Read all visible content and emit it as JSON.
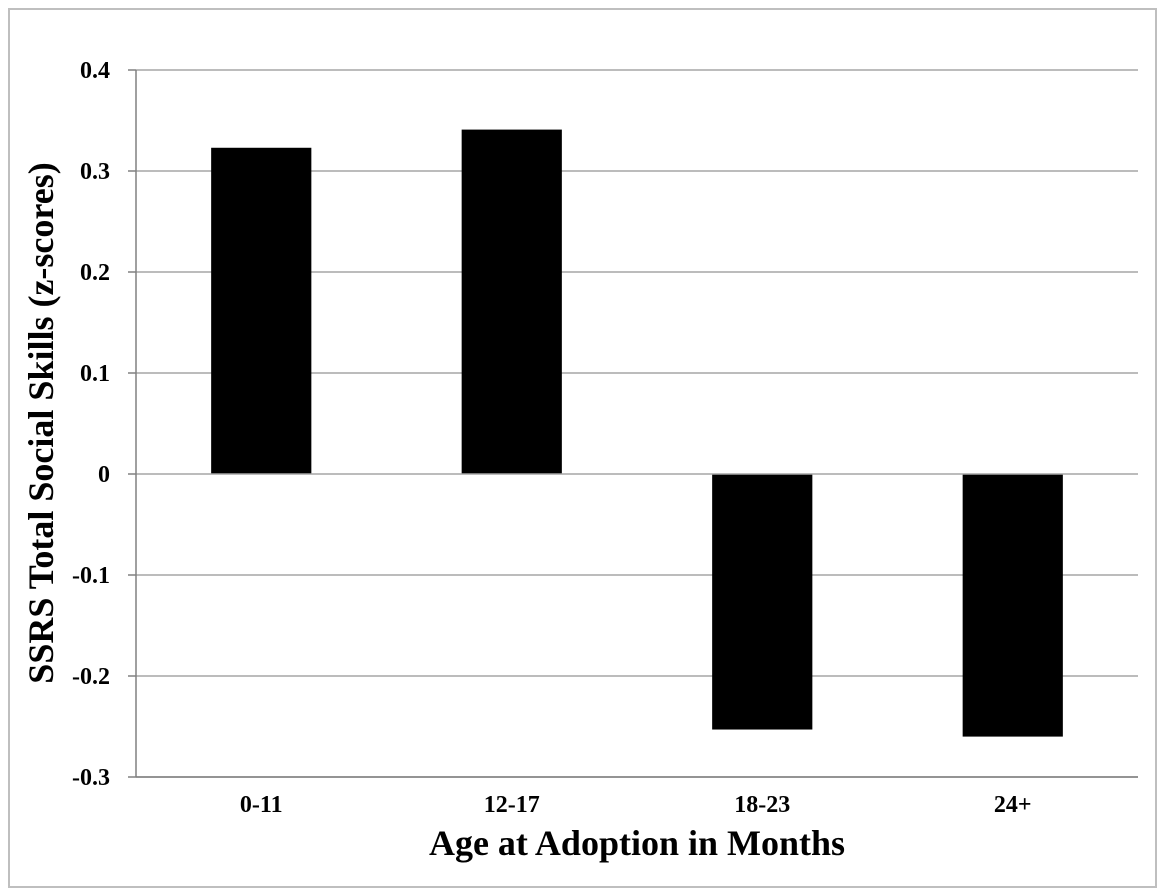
{
  "chart_data": {
    "type": "bar",
    "title": "",
    "xlabel": "Age at Adoption in Months",
    "ylabel": "SSRS Total Social Skills (z-scores)",
    "categories": [
      "0-11",
      "12-17",
      "18-23",
      "24+"
    ],
    "values": [
      0.323,
      0.341,
      -0.253,
      -0.26
    ],
    "ylim": [
      -0.3,
      0.4
    ],
    "yticks": [
      0.4,
      0.3,
      0.2,
      0.1,
      0,
      -0.1,
      -0.2,
      -0.3
    ],
    "ytick_labels": [
      "0.4",
      "0.3",
      "0.2",
      "0.1",
      "0",
      "-0.1",
      "-0.2",
      "-0.3"
    ],
    "grid": true,
    "legend": "none",
    "colors": {
      "bar": "#000000",
      "grid": "#a6a6a6",
      "axis": "#808080"
    }
  }
}
